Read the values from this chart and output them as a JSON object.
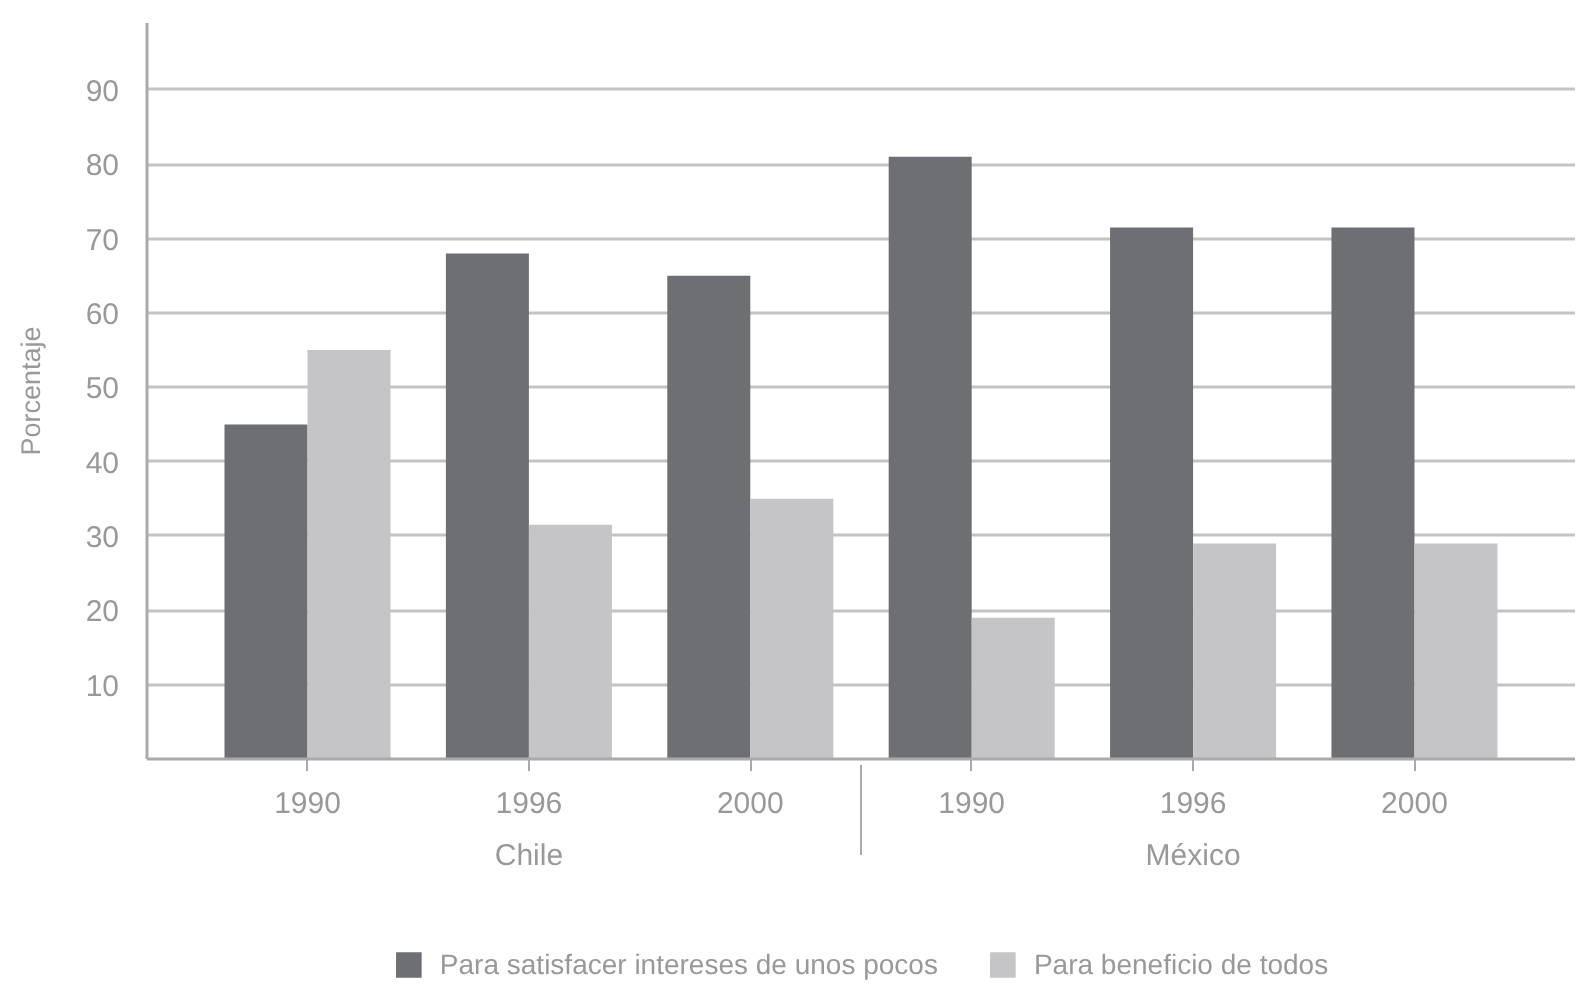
{
  "chart_data": {
    "type": "bar",
    "ylabel": "Porcentaje",
    "categories": [
      "1990",
      "1996",
      "2000",
      "1990",
      "1996",
      "2000"
    ],
    "annotations": [
      "Chile",
      "México"
    ],
    "series": [
      {
        "name": "Para satisfacer intereses de unos pocos",
        "color": "#6e6f72",
        "values": [
          45,
          68,
          65,
          81,
          71.5,
          71.5
        ]
      },
      {
        "name": "Para beneficio de todos",
        "color": "#c5c5c7",
        "values": [
          55,
          31.5,
          35,
          19,
          29,
          29
        ]
      }
    ],
    "ylim": [
      0,
      99
    ],
    "yticks": [
      10,
      20,
      30,
      40,
      50,
      60,
      70,
      80,
      90
    ],
    "grid": "y",
    "legend": "bottom"
  }
}
